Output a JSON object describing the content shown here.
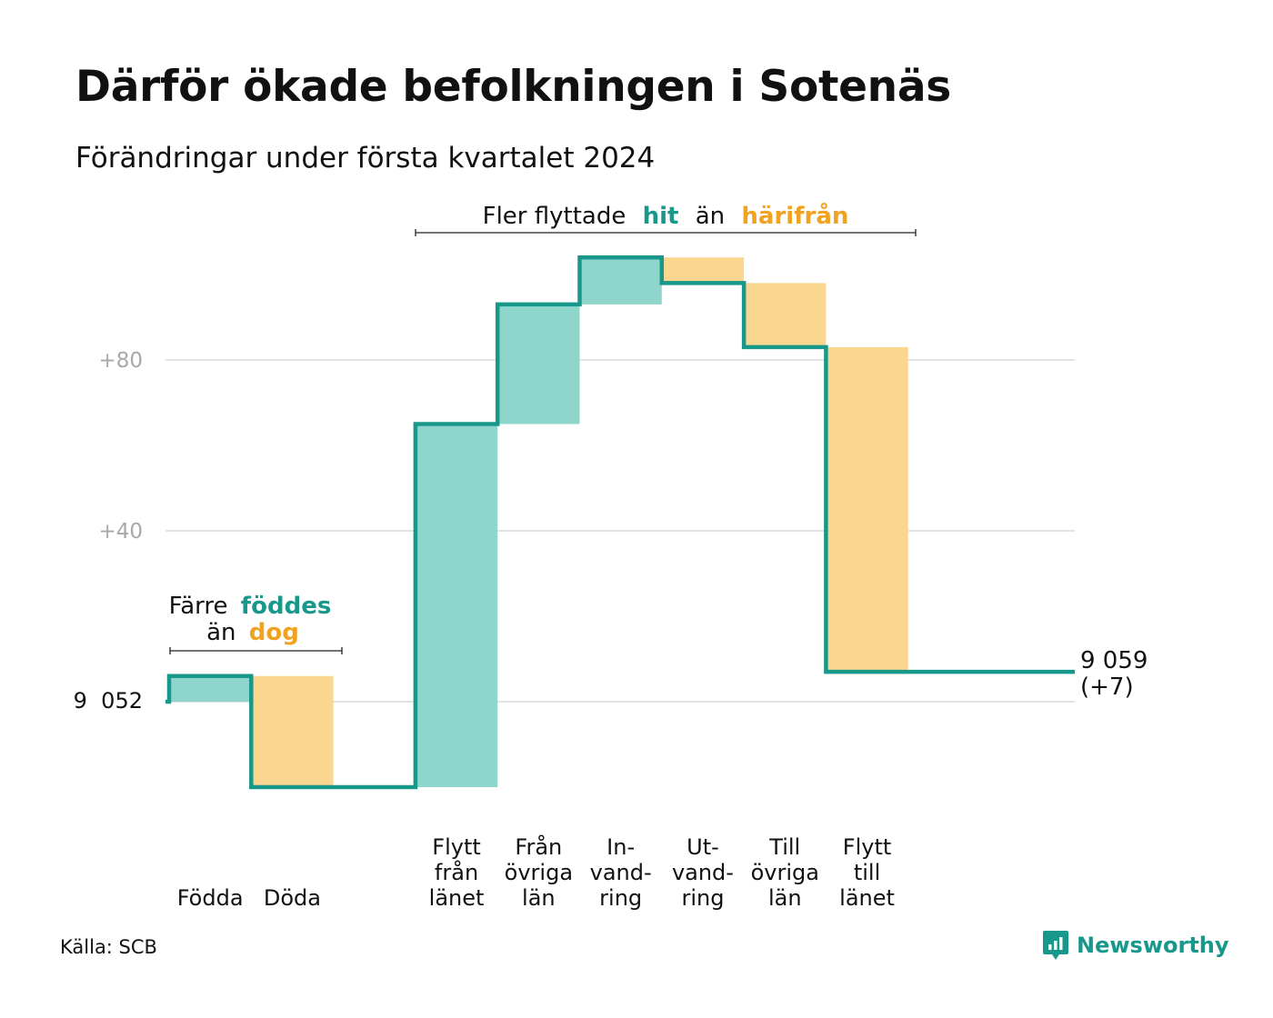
{
  "title": "Därför ökade befolkningen i Sotenäs",
  "subtitle": "Förändringar under första kvartalet 2024",
  "source": "Källa: SCB",
  "brand": {
    "name": "Newsworthy",
    "icon": "newsworthy-logo-icon"
  },
  "colors": {
    "line": "#18988b",
    "increase": "#8ed6cc",
    "decrease": "#fbd68f",
    "grid": "#e3e3e3",
    "accent_teal": "#18988b",
    "accent_orange": "#f0a220"
  },
  "annotations": {
    "births": {
      "line1_prefix": "Färre",
      "line1_highlight": "föddes",
      "line2_prefix": "än",
      "line2_highlight": "dog"
    },
    "migration": {
      "prefix": "Fler flyttade",
      "highlight1": "hit",
      "middle": "än",
      "highlight2": "härifrån"
    }
  },
  "chart_data": {
    "type": "waterfall",
    "title": "Därför ökade befolkningen i Sotenäs",
    "subtitle": "Förändringar under första kvartalet 2024",
    "baseline_value": 9052,
    "baseline_label": "9  052",
    "end_value": 9059,
    "end_label": "9 059",
    "end_change_label": "(+7)",
    "yticks": [
      {
        "offset": 40,
        "label": "+40"
      },
      {
        "offset": 80,
        "label": "+80"
      }
    ],
    "ylim": [
      -28,
      120
    ],
    "grid": true,
    "steps": [
      {
        "label": [
          "Födda"
        ],
        "value": 6
      },
      {
        "label": [
          "Döda"
        ],
        "value": -26
      },
      {
        "label": [],
        "value": 0
      },
      {
        "label": [
          "Flytt",
          "från",
          "länet"
        ],
        "value": 85
      },
      {
        "label": [
          "Från",
          "övriga",
          "län"
        ],
        "value": 28
      },
      {
        "label": [
          "In-",
          "vand-",
          "ring"
        ],
        "value": 11
      },
      {
        "label": [
          "Ut-",
          "vand-",
          "ring"
        ],
        "value": -6
      },
      {
        "label": [
          "Till",
          "övriga",
          "län"
        ],
        "value": -15
      },
      {
        "label": [
          "Flytt",
          "till",
          "länet"
        ],
        "value": -76
      }
    ]
  }
}
